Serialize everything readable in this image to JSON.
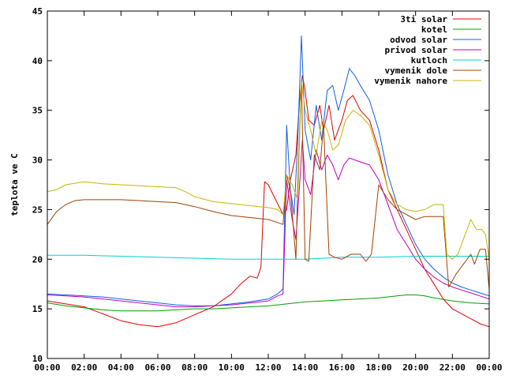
{
  "chart_data": {
    "type": "line",
    "ylabel": "teplota ve C",
    "xlim": [
      0,
      24
    ],
    "ylim": [
      10,
      45
    ],
    "grid": false,
    "legend_position": "top-right",
    "x_ticks": [
      0,
      2,
      4,
      6,
      8,
      10,
      12,
      14,
      16,
      18,
      20,
      22,
      24
    ],
    "x_tick_labels": [
      "00:00",
      "02:00",
      "04:00",
      "06:00",
      "08:00",
      "10:00",
      "12:00",
      "14:00",
      "16:00",
      "18:00",
      "20:00",
      "22:00",
      "00:00"
    ],
    "y_ticks": [
      10,
      15,
      20,
      25,
      30,
      35,
      40,
      45
    ],
    "y_tick_labels": [
      "10",
      "15",
      "20",
      "25",
      "30",
      "35",
      "40",
      "45"
    ],
    "series": [
      {
        "name": "3ti solar",
        "color": "#e00000",
        "points": [
          [
            0,
            15.8
          ],
          [
            1,
            15.5
          ],
          [
            2,
            15.2
          ],
          [
            3,
            14.5
          ],
          [
            4,
            13.8
          ],
          [
            5,
            13.4
          ],
          [
            6,
            13.2
          ],
          [
            7,
            13.6
          ],
          [
            8,
            14.4
          ],
          [
            9,
            15.2
          ],
          [
            10,
            16.5
          ],
          [
            10.5,
            17.5
          ],
          [
            11,
            18.3
          ],
          [
            11.4,
            18.1
          ],
          [
            11.6,
            19.2
          ],
          [
            11.8,
            27.8
          ],
          [
            12.0,
            27.5
          ],
          [
            12.4,
            26.0
          ],
          [
            12.8,
            24.5
          ],
          [
            13.0,
            25.0
          ],
          [
            13.2,
            28.0
          ],
          [
            13.5,
            30.5
          ],
          [
            13.7,
            36.0
          ],
          [
            13.85,
            38.5
          ],
          [
            14.0,
            37.0
          ],
          [
            14.2,
            34.0
          ],
          [
            14.5,
            33.5
          ],
          [
            14.8,
            35.5
          ],
          [
            15.0,
            33.0
          ],
          [
            15.3,
            35.5
          ],
          [
            15.6,
            32.0
          ],
          [
            16.0,
            34.0
          ],
          [
            16.3,
            36.0
          ],
          [
            16.6,
            36.5
          ],
          [
            17.0,
            35.0
          ],
          [
            17.5,
            34.0
          ],
          [
            18.0,
            31.0
          ],
          [
            18.5,
            27.0
          ],
          [
            19.0,
            25.0
          ],
          [
            19.5,
            23.0
          ],
          [
            20.0,
            21.0
          ],
          [
            20.5,
            19.0
          ],
          [
            21.0,
            17.5
          ],
          [
            21.5,
            16.0
          ],
          [
            22.0,
            15.0
          ],
          [
            22.5,
            14.5
          ],
          [
            23.0,
            14.0
          ],
          [
            23.5,
            13.5
          ],
          [
            24,
            13.2
          ]
        ]
      },
      {
        "name": "kotel",
        "color": "#00a000",
        "points": [
          [
            0,
            15.6
          ],
          [
            1,
            15.3
          ],
          [
            2,
            15.1
          ],
          [
            3,
            14.9
          ],
          [
            4,
            14.8
          ],
          [
            5,
            14.8
          ],
          [
            6,
            14.8
          ],
          [
            7,
            14.9
          ],
          [
            8,
            15.0
          ],
          [
            9,
            15.0
          ],
          [
            10,
            15.1
          ],
          [
            11,
            15.2
          ],
          [
            12,
            15.3
          ],
          [
            13,
            15.5
          ],
          [
            14,
            15.7
          ],
          [
            15,
            15.8
          ],
          [
            16,
            15.9
          ],
          [
            17,
            16.0
          ],
          [
            18,
            16.1
          ],
          [
            19,
            16.3
          ],
          [
            19.5,
            16.4
          ],
          [
            20,
            16.4
          ],
          [
            20.5,
            16.3
          ],
          [
            21,
            16.1
          ],
          [
            22,
            15.8
          ],
          [
            23,
            15.6
          ],
          [
            24,
            15.5
          ]
        ]
      },
      {
        "name": "odvod solar",
        "color": "#1060e0",
        "points": [
          [
            0,
            16.5
          ],
          [
            1,
            16.4
          ],
          [
            2,
            16.3
          ],
          [
            3,
            16.2
          ],
          [
            4,
            16.0
          ],
          [
            5,
            15.8
          ],
          [
            6,
            15.6
          ],
          [
            7,
            15.4
          ],
          [
            8,
            15.3
          ],
          [
            9,
            15.3
          ],
          [
            10,
            15.5
          ],
          [
            11,
            15.7
          ],
          [
            12,
            16.0
          ],
          [
            12.5,
            16.5
          ],
          [
            12.8,
            17.0
          ],
          [
            13.0,
            33.5
          ],
          [
            13.2,
            27.0
          ],
          [
            13.4,
            24.5
          ],
          [
            13.6,
            32.0
          ],
          [
            13.8,
            42.5
          ],
          [
            14.0,
            33.0
          ],
          [
            14.3,
            30.0
          ],
          [
            14.6,
            35.5
          ],
          [
            14.9,
            32.0
          ],
          [
            15.2,
            37.0
          ],
          [
            15.5,
            37.5
          ],
          [
            15.8,
            35.0
          ],
          [
            16.1,
            37.0
          ],
          [
            16.4,
            39.2
          ],
          [
            16.7,
            38.5
          ],
          [
            17.0,
            37.5
          ],
          [
            17.5,
            36.0
          ],
          [
            18.0,
            33.0
          ],
          [
            18.5,
            28.5
          ],
          [
            19.0,
            25.5
          ],
          [
            19.5,
            23.5
          ],
          [
            20.0,
            21.5
          ],
          [
            20.5,
            20.0
          ],
          [
            21.0,
            19.0
          ],
          [
            21.5,
            18.2
          ],
          [
            22.0,
            17.6
          ],
          [
            22.5,
            17.2
          ],
          [
            23.0,
            16.9
          ],
          [
            23.5,
            16.6
          ],
          [
            24,
            16.3
          ]
        ]
      },
      {
        "name": "privod solar",
        "color": "#c000c0",
        "points": [
          [
            0,
            16.4
          ],
          [
            1,
            16.3
          ],
          [
            2,
            16.2
          ],
          [
            3,
            16.0
          ],
          [
            4,
            15.8
          ],
          [
            5,
            15.6
          ],
          [
            6,
            15.4
          ],
          [
            7,
            15.2
          ],
          [
            8,
            15.2
          ],
          [
            9,
            15.3
          ],
          [
            10,
            15.4
          ],
          [
            11,
            15.6
          ],
          [
            12,
            15.8
          ],
          [
            12.5,
            16.3
          ],
          [
            12.8,
            16.5
          ],
          [
            13.0,
            28.0
          ],
          [
            13.3,
            24.0
          ],
          [
            13.5,
            22.0
          ],
          [
            13.7,
            27.5
          ],
          [
            13.85,
            32.0
          ],
          [
            14.0,
            28.0
          ],
          [
            14.3,
            26.5
          ],
          [
            14.6,
            31.0
          ],
          [
            14.9,
            29.0
          ],
          [
            15.2,
            30.5
          ],
          [
            15.5,
            29.5
          ],
          [
            15.8,
            28.0
          ],
          [
            16.1,
            29.5
          ],
          [
            16.4,
            30.2
          ],
          [
            16.7,
            30.0
          ],
          [
            17.0,
            29.8
          ],
          [
            17.5,
            29.5
          ],
          [
            18.0,
            28.0
          ],
          [
            18.5,
            25.5
          ],
          [
            19.0,
            23.0
          ],
          [
            19.5,
            21.5
          ],
          [
            20.0,
            20.0
          ],
          [
            20.5,
            19.0
          ],
          [
            21.0,
            18.2
          ],
          [
            21.5,
            17.6
          ],
          [
            22.0,
            17.2
          ],
          [
            22.5,
            16.9
          ],
          [
            23.0,
            16.6
          ],
          [
            23.5,
            16.3
          ],
          [
            24,
            16.0
          ]
        ]
      },
      {
        "name": "kutloch",
        "color": "#00d0d0",
        "points": [
          [
            0,
            20.4
          ],
          [
            2,
            20.4
          ],
          [
            4,
            20.3
          ],
          [
            6,
            20.2
          ],
          [
            8,
            20.1
          ],
          [
            10,
            20.0
          ],
          [
            12,
            20.0
          ],
          [
            14,
            20.0
          ],
          [
            16,
            20.2
          ],
          [
            18,
            20.2
          ],
          [
            20,
            20.3
          ],
          [
            22,
            20.3
          ],
          [
            24,
            20.3
          ]
        ]
      },
      {
        "name": "vymenik dole",
        "color": "#a04000",
        "points": [
          [
            0,
            23.5
          ],
          [
            0.5,
            24.8
          ],
          [
            1,
            25.5
          ],
          [
            1.5,
            25.9
          ],
          [
            2,
            26.0
          ],
          [
            3,
            26.0
          ],
          [
            4,
            26.0
          ],
          [
            5,
            25.9
          ],
          [
            6,
            25.8
          ],
          [
            7,
            25.7
          ],
          [
            8,
            25.3
          ],
          [
            9,
            24.8
          ],
          [
            10,
            24.4
          ],
          [
            11,
            24.2
          ],
          [
            12,
            24.0
          ],
          [
            12.5,
            23.7
          ],
          [
            12.8,
            23.5
          ],
          [
            13.0,
            28.5
          ],
          [
            13.2,
            27.0
          ],
          [
            13.5,
            20.0
          ],
          [
            13.6,
            27.5
          ],
          [
            13.8,
            38.0
          ],
          [
            14.0,
            20.0
          ],
          [
            14.2,
            19.8
          ],
          [
            14.5,
            30.5
          ],
          [
            14.8,
            29.0
          ],
          [
            15.0,
            33.5
          ],
          [
            15.3,
            20.5
          ],
          [
            15.6,
            20.2
          ],
          [
            16.0,
            20.0
          ],
          [
            16.5,
            20.5
          ],
          [
            17.0,
            20.5
          ],
          [
            17.3,
            19.8
          ],
          [
            17.6,
            20.5
          ],
          [
            18.0,
            27.5
          ],
          [
            18.5,
            26.0
          ],
          [
            19.0,
            25.0
          ],
          [
            19.5,
            24.5
          ],
          [
            20.0,
            24.0
          ],
          [
            20.5,
            24.3
          ],
          [
            21.0,
            24.3
          ],
          [
            21.5,
            24.3
          ],
          [
            21.8,
            17.2
          ],
          [
            22.2,
            18.5
          ],
          [
            22.6,
            19.5
          ],
          [
            23.0,
            20.5
          ],
          [
            23.2,
            19.5
          ],
          [
            23.5,
            21.0
          ],
          [
            23.8,
            21.0
          ],
          [
            24,
            17.0
          ]
        ]
      },
      {
        "name": "vymenik nahore",
        "color": "#c8b400",
        "points": [
          [
            0,
            26.8
          ],
          [
            0.5,
            27.0
          ],
          [
            1,
            27.5
          ],
          [
            2,
            27.8
          ],
          [
            3,
            27.6
          ],
          [
            4,
            27.5
          ],
          [
            5,
            27.4
          ],
          [
            6,
            27.3
          ],
          [
            7,
            27.2
          ],
          [
            7.5,
            26.8
          ],
          [
            8,
            26.3
          ],
          [
            9,
            25.8
          ],
          [
            10,
            25.6
          ],
          [
            11,
            25.4
          ],
          [
            12,
            25.2
          ],
          [
            12.5,
            25.0
          ],
          [
            12.8,
            24.5
          ],
          [
            13.0,
            28.5
          ],
          [
            13.3,
            27.5
          ],
          [
            13.6,
            26.0
          ],
          [
            13.8,
            38.0
          ],
          [
            14.0,
            35.0
          ],
          [
            14.3,
            33.0
          ],
          [
            14.6,
            30.5
          ],
          [
            14.9,
            34.0
          ],
          [
            15.2,
            33.0
          ],
          [
            15.5,
            31.0
          ],
          [
            15.8,
            31.5
          ],
          [
            16.2,
            34.0
          ],
          [
            16.6,
            35.0
          ],
          [
            17.0,
            34.5
          ],
          [
            17.5,
            33.5
          ],
          [
            18.0,
            30.5
          ],
          [
            18.5,
            27.0
          ],
          [
            19.0,
            25.5
          ],
          [
            19.5,
            25.0
          ],
          [
            20.0,
            24.8
          ],
          [
            20.5,
            25.0
          ],
          [
            21.0,
            25.5
          ],
          [
            21.5,
            25.5
          ],
          [
            21.7,
            20.5
          ],
          [
            22.0,
            20.0
          ],
          [
            22.3,
            20.5
          ],
          [
            22.6,
            22.0
          ],
          [
            23.0,
            24.0
          ],
          [
            23.3,
            23.0
          ],
          [
            23.6,
            23.0
          ],
          [
            23.8,
            22.5
          ],
          [
            24,
            20.0
          ]
        ]
      }
    ]
  }
}
